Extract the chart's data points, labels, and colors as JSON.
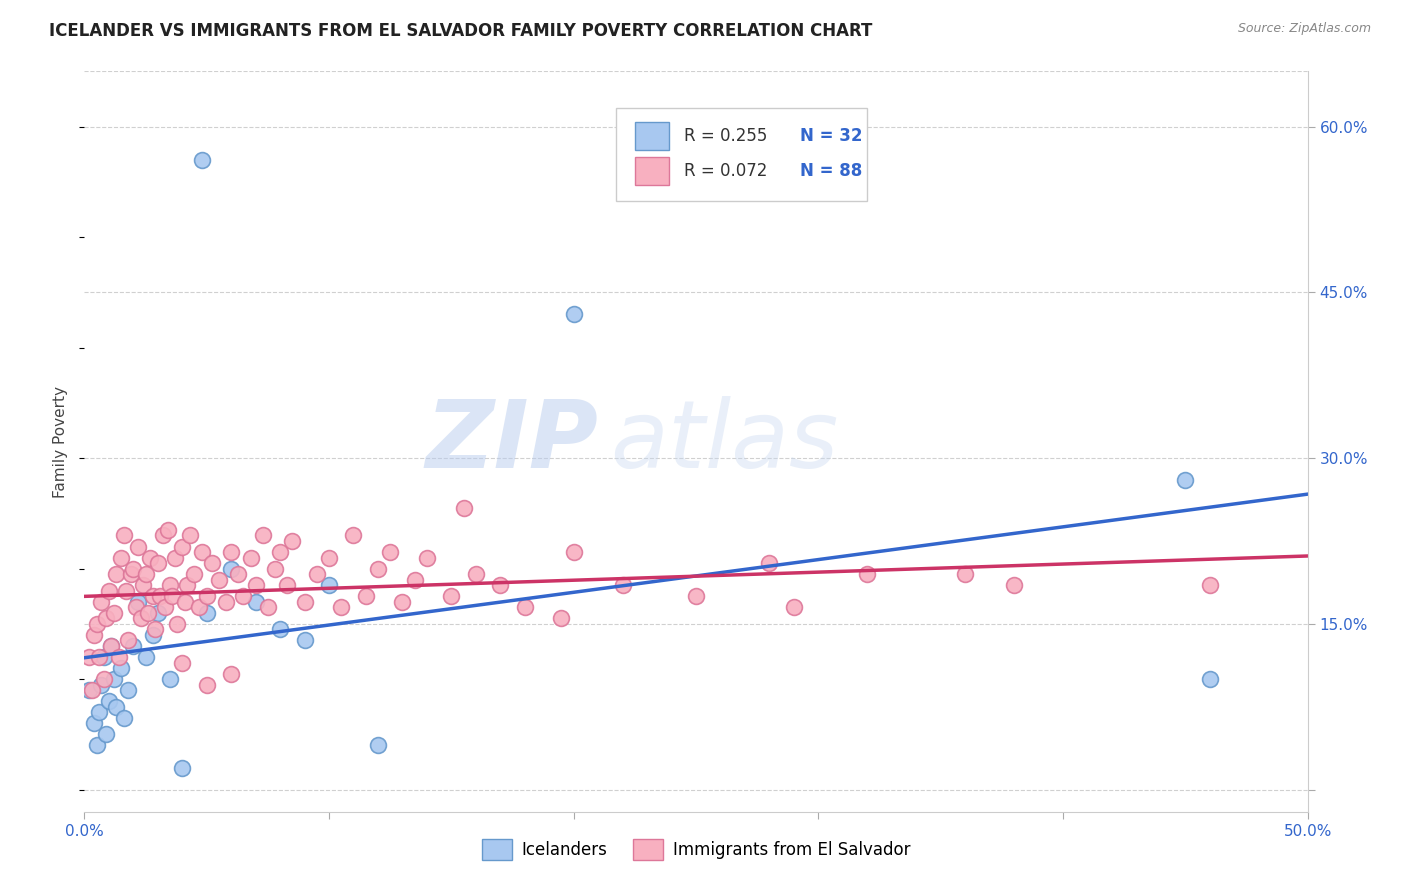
{
  "title": "ICELANDER VS IMMIGRANTS FROM EL SALVADOR FAMILY POVERTY CORRELATION CHART",
  "source": "Source: ZipAtlas.com",
  "ylabel": "Family Poverty",
  "xlim": [
    0.0,
    0.5
  ],
  "ylim": [
    -0.02,
    0.65
  ],
  "x_ticks": [
    0.0,
    0.1,
    0.2,
    0.3,
    0.4,
    0.5
  ],
  "y_ticks_right": [
    0.0,
    0.15,
    0.3,
    0.45,
    0.6
  ],
  "y_tick_labels_right": [
    "",
    "15.0%",
    "30.0%",
    "45.0%",
    "60.0%"
  ],
  "grid_color": "#d0d0d0",
  "bg_color": "#ffffff",
  "series1_color": "#a8c8f0",
  "series1_edge": "#6699cc",
  "series2_color": "#f8b0c0",
  "series2_edge": "#dd7799",
  "line1_color": "#3366cc",
  "line2_color": "#cc3366",
  "legend_r1": "R = 0.255",
  "legend_n1": "N = 32",
  "legend_r2": "R = 0.072",
  "legend_n2": "N = 88",
  "legend_label1": "Icelanders",
  "legend_label2": "Immigrants from El Salvador",
  "series1_x": [
    0.002,
    0.004,
    0.005,
    0.006,
    0.007,
    0.008,
    0.009,
    0.01,
    0.011,
    0.012,
    0.013,
    0.015,
    0.016,
    0.018,
    0.02,
    0.022,
    0.025,
    0.028,
    0.03,
    0.035,
    0.04,
    0.05,
    0.06,
    0.07,
    0.08,
    0.09,
    0.1,
    0.12,
    0.048,
    0.2,
    0.45,
    0.46
  ],
  "series1_y": [
    0.09,
    0.06,
    0.04,
    0.07,
    0.095,
    0.12,
    0.05,
    0.08,
    0.13,
    0.1,
    0.075,
    0.11,
    0.065,
    0.09,
    0.13,
    0.17,
    0.12,
    0.14,
    0.16,
    0.1,
    0.02,
    0.16,
    0.2,
    0.17,
    0.145,
    0.135,
    0.185,
    0.04,
    0.57,
    0.43,
    0.28,
    0.1
  ],
  "series2_x": [
    0.002,
    0.003,
    0.004,
    0.005,
    0.006,
    0.007,
    0.008,
    0.009,
    0.01,
    0.011,
    0.012,
    0.013,
    0.014,
    0.015,
    0.016,
    0.017,
    0.018,
    0.019,
    0.02,
    0.021,
    0.022,
    0.023,
    0.024,
    0.025,
    0.026,
    0.027,
    0.028,
    0.029,
    0.03,
    0.031,
    0.032,
    0.033,
    0.034,
    0.035,
    0.036,
    0.037,
    0.038,
    0.04,
    0.041,
    0.042,
    0.043,
    0.045,
    0.047,
    0.048,
    0.05,
    0.052,
    0.055,
    0.058,
    0.06,
    0.063,
    0.065,
    0.068,
    0.07,
    0.073,
    0.075,
    0.078,
    0.08,
    0.083,
    0.085,
    0.09,
    0.095,
    0.1,
    0.105,
    0.11,
    0.115,
    0.12,
    0.125,
    0.13,
    0.135,
    0.14,
    0.15,
    0.16,
    0.17,
    0.18,
    0.2,
    0.22,
    0.25,
    0.28,
    0.32,
    0.38,
    0.04,
    0.05,
    0.06,
    0.155,
    0.195,
    0.29,
    0.36,
    0.46
  ],
  "series2_y": [
    0.12,
    0.09,
    0.14,
    0.15,
    0.12,
    0.17,
    0.1,
    0.155,
    0.18,
    0.13,
    0.16,
    0.195,
    0.12,
    0.21,
    0.23,
    0.18,
    0.135,
    0.195,
    0.2,
    0.165,
    0.22,
    0.155,
    0.185,
    0.195,
    0.16,
    0.21,
    0.175,
    0.145,
    0.205,
    0.175,
    0.23,
    0.165,
    0.235,
    0.185,
    0.175,
    0.21,
    0.15,
    0.22,
    0.17,
    0.185,
    0.23,
    0.195,
    0.165,
    0.215,
    0.175,
    0.205,
    0.19,
    0.17,
    0.215,
    0.195,
    0.175,
    0.21,
    0.185,
    0.23,
    0.165,
    0.2,
    0.215,
    0.185,
    0.225,
    0.17,
    0.195,
    0.21,
    0.165,
    0.23,
    0.175,
    0.2,
    0.215,
    0.17,
    0.19,
    0.21,
    0.175,
    0.195,
    0.185,
    0.165,
    0.215,
    0.185,
    0.175,
    0.205,
    0.195,
    0.185,
    0.115,
    0.095,
    0.105,
    0.255,
    0.155,
    0.165,
    0.195,
    0.185
  ]
}
